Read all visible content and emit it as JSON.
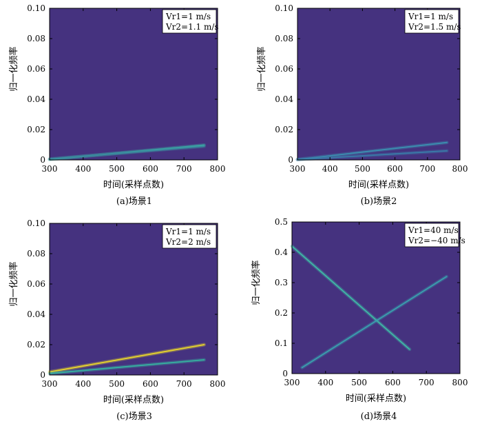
{
  "chart_data": [
    {
      "type": "heatmap",
      "caption": "(a)场景1",
      "xlabel": "时间(采样点数)",
      "ylabel": "归一化频率",
      "xlim": [
        300,
        800
      ],
      "ylim": [
        0,
        0.1
      ],
      "xticks": [
        "300",
        "400",
        "500",
        "600",
        "700",
        "800"
      ],
      "yticks": [
        "0",
        "0.02",
        "0.04",
        "0.06",
        "0.08",
        "0.10"
      ],
      "legend_lines": [
        "Vr1=1 m/s",
        "Vr2=1.1 m/s"
      ],
      "background_color": "#45327f",
      "series": [
        {
          "x": [
            300,
            760
          ],
          "y": [
            0.0003,
            0.0098
          ],
          "color": "#3bb3a6"
        },
        {
          "x": [
            300,
            760
          ],
          "y": [
            0.0006,
            0.009
          ],
          "color": "#3a8c9f"
        }
      ]
    },
    {
      "type": "heatmap",
      "caption": "(b)场景2",
      "xlabel": "时间(采样点数)",
      "ylabel": "归一化频率",
      "xlim": [
        300,
        800
      ],
      "ylim": [
        0,
        0.1
      ],
      "xticks": [
        "300",
        "400",
        "500",
        "600",
        "700",
        "800"
      ],
      "yticks": [
        "0",
        "0.02",
        "0.04",
        "0.06",
        "0.08",
        "0.10"
      ],
      "legend_lines": [
        "Vr1=1 m/s",
        "Vr2=1.5 m/s"
      ],
      "background_color": "#45327f",
      "series": [
        {
          "x": [
            300,
            760
          ],
          "y": [
            0.0003,
            0.0115
          ],
          "color": "#3b8fb0"
        },
        {
          "x": [
            300,
            760
          ],
          "y": [
            0.0002,
            0.006
          ],
          "color": "#3a7aa8"
        }
      ]
    },
    {
      "type": "heatmap",
      "caption": "(c)场景3",
      "xlabel": "时间(采样点数)",
      "ylabel": "归一化频率",
      "xlim": [
        300,
        800
      ],
      "ylim": [
        0,
        0.1
      ],
      "xticks": [
        "300",
        "400",
        "500",
        "600",
        "700",
        "800"
      ],
      "yticks": [
        "0",
        "0.02",
        "0.04",
        "0.06",
        "0.08",
        "0.10"
      ],
      "legend_lines": [
        "Vr1=1 m/s",
        "Vr2=2 m/s"
      ],
      "background_color": "#45327f",
      "series": [
        {
          "x": [
            300,
            760
          ],
          "y": [
            0.002,
            0.02
          ],
          "color": "#e8d62c"
        },
        {
          "x": [
            300,
            760
          ],
          "y": [
            0.001,
            0.01
          ],
          "color": "#36b1a0"
        }
      ]
    },
    {
      "type": "heatmap",
      "caption": "(d)场景4",
      "xlabel": "时间(采样点数)",
      "ylabel": "归一化频率",
      "xlim": [
        300,
        800
      ],
      "ylim": [
        0,
        0.5
      ],
      "xticks": [
        "300",
        "400",
        "500",
        "600",
        "700",
        "800"
      ],
      "yticks": [
        "0",
        "0.1",
        "0.2",
        "0.3",
        "0.4",
        "0.5"
      ],
      "legend_lines": [
        "Vr1=40 m/s",
        "Vr2=−40 m/s"
      ],
      "background_color": "#45327f",
      "series": [
        {
          "x": [
            300,
            650
          ],
          "y": [
            0.42,
            0.08
          ],
          "color": "#3fb7a6"
        },
        {
          "x": [
            330,
            760
          ],
          "y": [
            0.02,
            0.32
          ],
          "color": "#3a9fae"
        }
      ]
    }
  ]
}
